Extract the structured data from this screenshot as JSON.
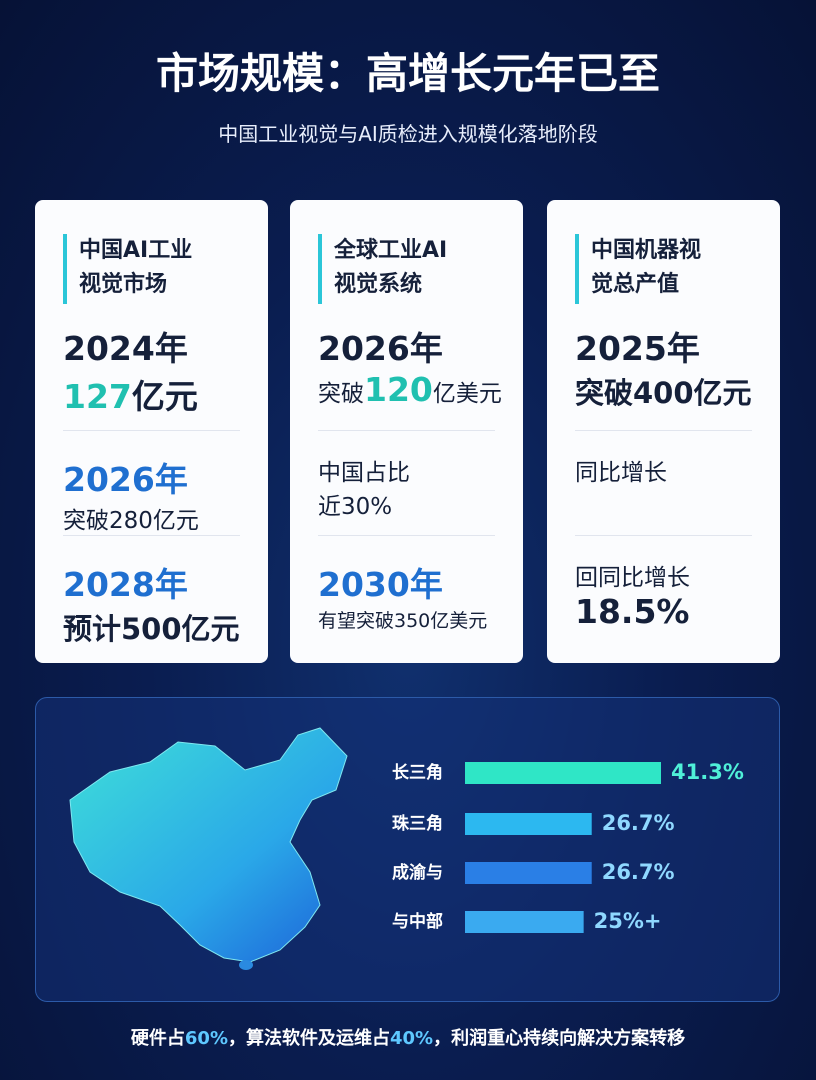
{
  "header": {
    "title": "市场规模：高增长元年已至",
    "subtitle": "中国工业视觉与AI质检进入规模化落地阶段"
  },
  "cards": [
    {
      "title": [
        "中国AI工业",
        "视觉市场"
      ],
      "blocks": [
        {
          "lines": [
            [
              "2024年"
            ],
            [
              "127",
              "亿元"
            ]
          ]
        },
        {
          "lines": [
            [
              "2026年"
            ],
            [
              "突破280亿元"
            ]
          ]
        },
        {
          "lines": [
            [
              "2028年"
            ],
            [
              "预计500亿元"
            ]
          ]
        }
      ]
    },
    {
      "title": [
        "全球工业AI",
        "视觉系统"
      ],
      "blocks": [
        {
          "lines": [
            [
              "2026年"
            ],
            [
              "突破",
              "120",
              "亿美元"
            ]
          ]
        },
        {
          "lines": [
            [
              "中国占比"
            ],
            [
              "近30%"
            ]
          ]
        },
        {
          "lines": [
            [
              "2030年"
            ],
            [
              "有望突破350亿美元"
            ]
          ]
        }
      ]
    },
    {
      "title": [
        "中国机器视",
        "觉总产值"
      ],
      "blocks": [
        {
          "lines": [
            [
              "2025年"
            ],
            [
              "突破400亿元"
            ]
          ]
        },
        {
          "lines": [
            [
              "同比增长"
            ]
          ]
        },
        {
          "lines": [
            [
              "回同比增长"
            ],
            [
              "18.5%"
            ]
          ]
        }
      ]
    }
  ],
  "chart_data": {
    "type": "bar",
    "orientation": "horizontal",
    "categories": [
      "长三角",
      "珠三角",
      "成渝与",
      "与中部"
    ],
    "values": [
      41.3,
      26.7,
      26.7,
      25
    ],
    "value_labels": [
      "41.3%",
      "26.7%",
      "26.7%",
      "25%+"
    ],
    "colors": [
      "#2fe6c6",
      "#2cb8f0",
      "#2a7fe6",
      "#3aaaf0"
    ]
  },
  "footer": [
    "硬件占",
    "60%",
    "，算法软件及运维占",
    "40%",
    "，利润重心持续向解决方案转移"
  ]
}
